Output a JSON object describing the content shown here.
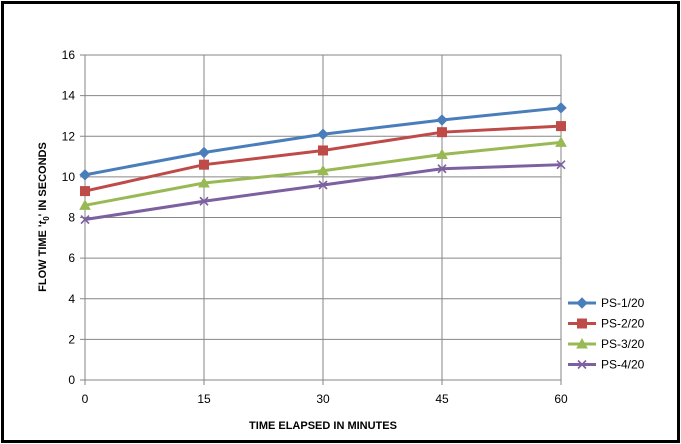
{
  "chart_data": {
    "type": "line",
    "title": "",
    "xlabel": "TIME ELAPSED  IN MINUTES",
    "ylabel_parts": [
      "FLOW TIME '",
      "t",
      "0",
      "' IN SECONDS"
    ],
    "ylabel": "FLOW TIME 't0' IN SECONDS",
    "x": [
      0,
      15,
      30,
      45,
      60
    ],
    "x_tick_labels": [
      "0",
      "15",
      "30",
      "45",
      "60"
    ],
    "ylim": [
      0,
      16
    ],
    "y_ticks": [
      0,
      2,
      4,
      6,
      8,
      10,
      12,
      14,
      16
    ],
    "y_tick_labels": [
      "0",
      "2",
      "4",
      "6",
      "8",
      "10",
      "12",
      "14",
      "16"
    ],
    "grid": true,
    "legend_position": "right",
    "series": [
      {
        "name": "PS-1/20",
        "color": "#4a7ebb",
        "marker": "diamond",
        "values": [
          10.1,
          11.2,
          12.1,
          12.8,
          13.4
        ]
      },
      {
        "name": "PS-2/20",
        "color": "#be4b48",
        "marker": "square",
        "values": [
          9.3,
          10.6,
          11.3,
          12.2,
          12.5
        ]
      },
      {
        "name": "PS-3/20",
        "color": "#98b954",
        "marker": "triangle",
        "values": [
          8.6,
          9.7,
          10.3,
          11.1,
          11.7
        ]
      },
      {
        "name": "PS-4/20",
        "color": "#7d60a0",
        "marker": "x",
        "values": [
          7.9,
          8.8,
          9.6,
          10.4,
          10.6
        ]
      }
    ]
  }
}
